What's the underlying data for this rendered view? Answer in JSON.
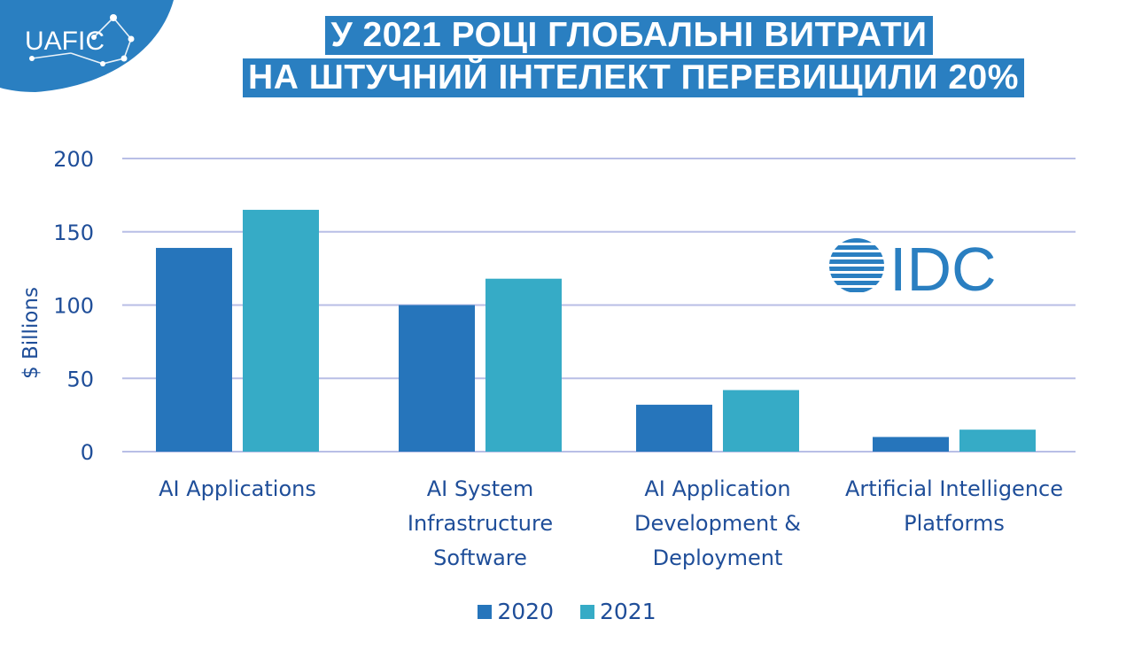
{
  "brand": {
    "logo_text": "UAFIC",
    "logo_bg": "#2a7fc1"
  },
  "title": {
    "line1": "У 2021 РОЦІ ГЛОБАЛЬНІ ВИТРАТИ",
    "line2": "НА ШТУЧНИЙ ІНТЕЛЕКТ ПЕРЕВИЩИЛИ 20%",
    "bg_color": "#2a7fc1"
  },
  "source_logo": {
    "text": "IDC",
    "color": "#2a7fc1"
  },
  "chart_data": {
    "type": "bar",
    "categories": [
      [
        "AI Applications"
      ],
      [
        "AI System",
        "Infrastructure",
        "Software"
      ],
      [
        "AI Application",
        "Development &",
        "Deployment"
      ],
      [
        "Artificial Intelligence",
        "Platforms"
      ]
    ],
    "series": [
      {
        "name": "2020",
        "values": [
          139,
          100,
          32,
          10
        ],
        "color": "#2675bb"
      },
      {
        "name": "2021",
        "values": [
          165,
          118,
          42,
          15
        ],
        "color": "#36abc6"
      }
    ],
    "xlabel": "",
    "ylabel": "$ Billions",
    "ylim": [
      0,
      200
    ],
    "yticks": [
      0,
      50,
      100,
      150,
      200
    ],
    "grid": true,
    "legend_position": "bottom"
  },
  "legend": [
    {
      "label": "2020",
      "color": "#2675bb"
    },
    {
      "label": "2021",
      "color": "#36abc6"
    }
  ]
}
